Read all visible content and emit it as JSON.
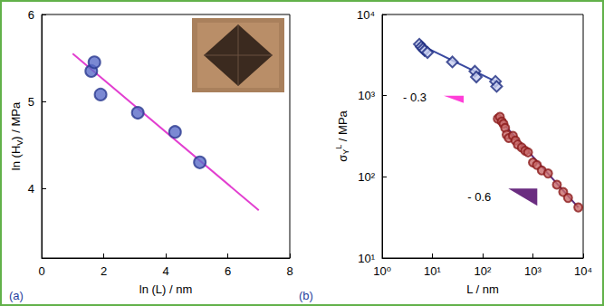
{
  "chart_data": [
    {
      "panel": "(a)",
      "type": "scatter",
      "x_label": "ln (L) / nm",
      "y_label": {
        "main": "ln (H",
        "subscript": "V",
        "after": ") / MPa"
      },
      "xlim": [
        0,
        8
      ],
      "xticks": [
        0,
        2,
        4,
        6,
        8
      ],
      "ylim": [
        3.2,
        6
      ],
      "yticks": [
        4,
        5,
        6
      ],
      "grid": false,
      "series": [
        {
          "type": "scatter",
          "marker": "circle",
          "color": "#2a3990",
          "x": [
            1.6,
            1.7,
            1.9,
            3.1,
            4.3,
            5.1
          ],
          "values": [
            5.35,
            5.45,
            5.08,
            4.87,
            4.65,
            4.3
          ]
        },
        {
          "type": "line",
          "line_style": "solid",
          "color": "#e23fd0",
          "x": [
            1,
            7
          ],
          "values": [
            5.55,
            3.75
          ]
        }
      ]
    },
    {
      "panel": "(b)",
      "type": "scatter",
      "log": true,
      "x_label": "L / nm",
      "y_label": {
        "main": "σ",
        "subscript": "Y",
        "superscript": "L",
        "after": " / MPa"
      },
      "xlim": [
        1,
        10000
      ],
      "xticks": [
        {
          "value": 1,
          "label": "10⁰"
        },
        {
          "value": 10,
          "label": "10¹"
        },
        {
          "value": 100,
          "label": "10²"
        },
        {
          "value": 1000,
          "label": "10³"
        },
        {
          "value": 10000,
          "label": "10⁴"
        }
      ],
      "ylim": [
        10,
        10000
      ],
      "yticks": [
        {
          "value": 10,
          "label": "10¹"
        },
        {
          "value": 100,
          "label": "10²"
        },
        {
          "value": 1000,
          "label": "10³"
        },
        {
          "value": 10000,
          "label": "10⁴"
        }
      ],
      "grid": false,
      "series": [
        {
          "type": "scatter",
          "marker": "diamond",
          "color": "#1c2a80",
          "x": [
            5.5,
            6,
            6.5,
            7,
            8,
            25,
            70,
            75,
            180,
            190
          ],
          "values": [
            4300,
            4000,
            3800,
            3600,
            3400,
            2600,
            2000,
            1700,
            1500,
            1300
          ]
        },
        {
          "type": "line",
          "line_style": "solid",
          "color": "#3a4aa0",
          "x": [
            5,
            200
          ],
          "values": [
            4400,
            1450
          ]
        },
        {
          "type": "scatter",
          "marker": "circle",
          "color": "#8b1a1a",
          "x": [
            200,
            220,
            240,
            260,
            280,
            300,
            330,
            400,
            450,
            500,
            600,
            700,
            800,
            1000,
            1200,
            1500,
            2000,
            3000,
            4000,
            5000,
            8000
          ],
          "values": [
            520,
            550,
            480,
            450,
            400,
            330,
            300,
            320,
            280,
            250,
            230,
            210,
            200,
            150,
            140,
            120,
            110,
            80,
            65,
            55,
            42
          ]
        },
        {
          "type": "line",
          "line_style": "solid",
          "color": "#5a2a7a",
          "x": [
            200,
            8000
          ],
          "values": [
            540,
            42
          ]
        }
      ],
      "annotations": [
        {
          "text": "- 0.3",
          "x": 2.6,
          "y": 950,
          "color": "#ff3fd8"
        },
        {
          "text": "- 0.6",
          "x": 50,
          "y": 57,
          "color": "#6a2c80"
        }
      ]
    }
  ]
}
